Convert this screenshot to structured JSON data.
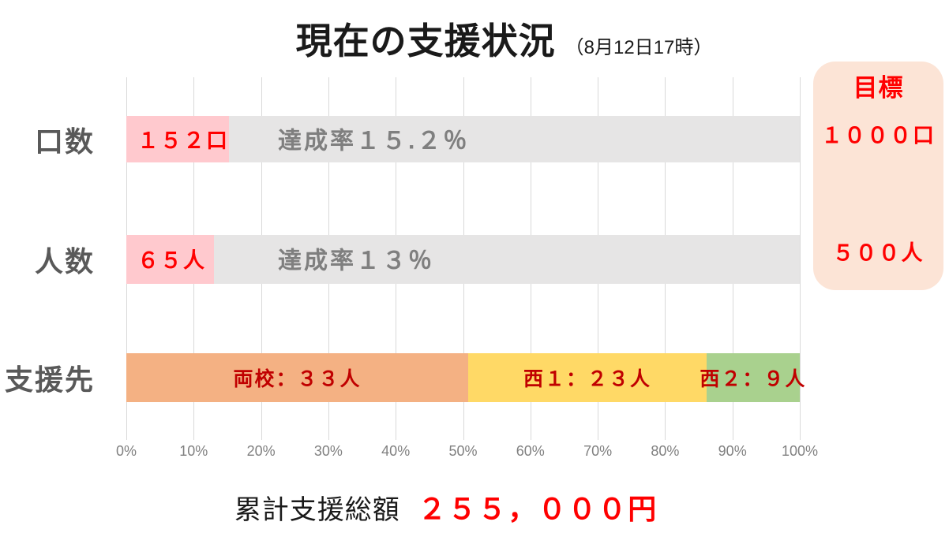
{
  "title": {
    "main": "現在の支援状況",
    "date": "（8月12日17時）"
  },
  "chart_data": {
    "type": "bar",
    "orientation": "horizontal",
    "title": "現在の支援状況（8月12日17時）",
    "axis": {
      "min": 0,
      "max": 100,
      "unit": "%",
      "grid": true,
      "ticks": [
        "0%",
        "10%",
        "20%",
        "30%",
        "40%",
        "50%",
        "60%",
        "70%",
        "80%",
        "90%",
        "100%"
      ]
    },
    "bars": [
      {
        "label": "口数",
        "value": 152,
        "unit": "口",
        "target": 1000,
        "percent": 15.2,
        "percent_css": "15.2%",
        "value_label": "１５２口",
        "achievement_label": "達成率１５.２％"
      },
      {
        "label": "人数",
        "value": 65,
        "unit": "人",
        "target": 500,
        "percent": 13,
        "percent_css": "13%",
        "value_label": "６５人",
        "achievement_label": "達成率１３％"
      },
      {
        "label": "支援先",
        "total": 65,
        "segments": [
          {
            "name": "両校",
            "value": 33,
            "percent": 50.8,
            "percent_css": "50.77%",
            "label": "両校：３３人",
            "color": "#F4B183"
          },
          {
            "name": "西1",
            "value": 23,
            "percent": 35.4,
            "percent_css": "35.38%",
            "label": "西１：２３人",
            "color": "#FFD966"
          },
          {
            "name": "西2",
            "value": 9,
            "percent": 13.8,
            "percent_css": "13.85%",
            "label": "西２：９人",
            "color": "#A9D18E"
          }
        ]
      }
    ]
  },
  "target_box": {
    "title": "目標",
    "units_label": "１０００口",
    "people_label": "５００人"
  },
  "footer": {
    "label": "累計支援総額",
    "amount": "２５５，０００円",
    "amount_value": 255000,
    "currency": "円"
  },
  "colors": {
    "fill_pink": "#FFC9CE",
    "track_gray": "#E6E5E5",
    "orange": "#F4B183",
    "yellow": "#FFD966",
    "green": "#A9D18E",
    "target_box_bg": "#FCE4D6",
    "red": "#FF0000",
    "dark_red": "#C00000",
    "row_label_gray": "#595959",
    "achievement_gray": "#7F7F7F",
    "axis_gray": "#808080",
    "gridline": "#D9D9D9"
  }
}
